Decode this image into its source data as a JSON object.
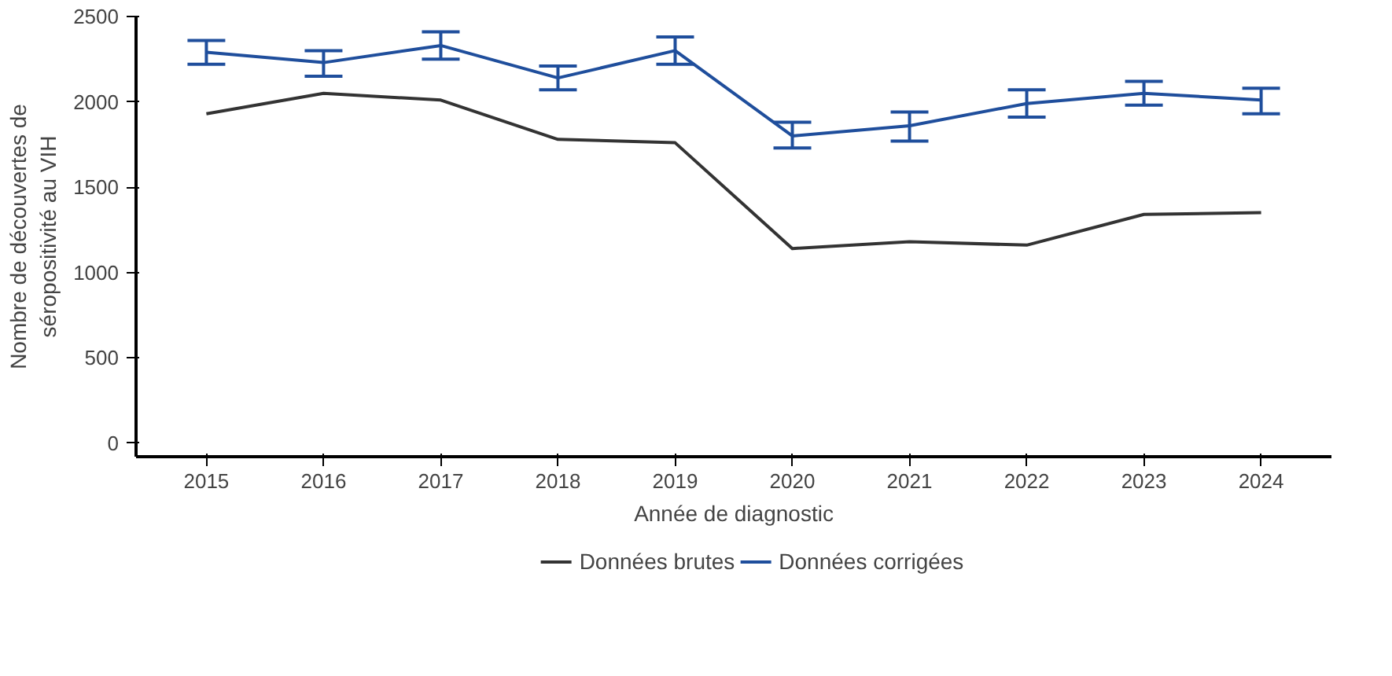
{
  "chart_data": {
    "type": "line",
    "xlabel": "Année de diagnostic",
    "ylabel": "Nombre de découvertes de\nséropositivité au VIH",
    "categories": [
      "2015",
      "2016",
      "2017",
      "2018",
      "2019",
      "2020",
      "2021",
      "2022",
      "2023",
      "2024"
    ],
    "ylim": [
      -80,
      2500
    ],
    "yticks": [
      0,
      500,
      1000,
      1500,
      2000,
      2500
    ],
    "grid": false,
    "legend": "bottom",
    "series": [
      {
        "name": "Données brutes",
        "color": "#333333",
        "values": [
          1930,
          2050,
          2010,
          1780,
          1760,
          1140,
          1180,
          1160,
          1340,
          1350
        ]
      },
      {
        "name": "Données corrigées",
        "color": "#1f4e9c",
        "values": [
          2290,
          2230,
          2330,
          2140,
          2300,
          1800,
          1860,
          1990,
          2050,
          2010
        ],
        "errors": [
          [
            2220,
            2360
          ],
          [
            2150,
            2300
          ],
          [
            2250,
            2410
          ],
          [
            2070,
            2210
          ],
          [
            2220,
            2380
          ],
          [
            1730,
            1880
          ],
          [
            1770,
            1940
          ],
          [
            1910,
            2070
          ],
          [
            1980,
            2120
          ],
          [
            1930,
            2080
          ]
        ]
      }
    ]
  }
}
